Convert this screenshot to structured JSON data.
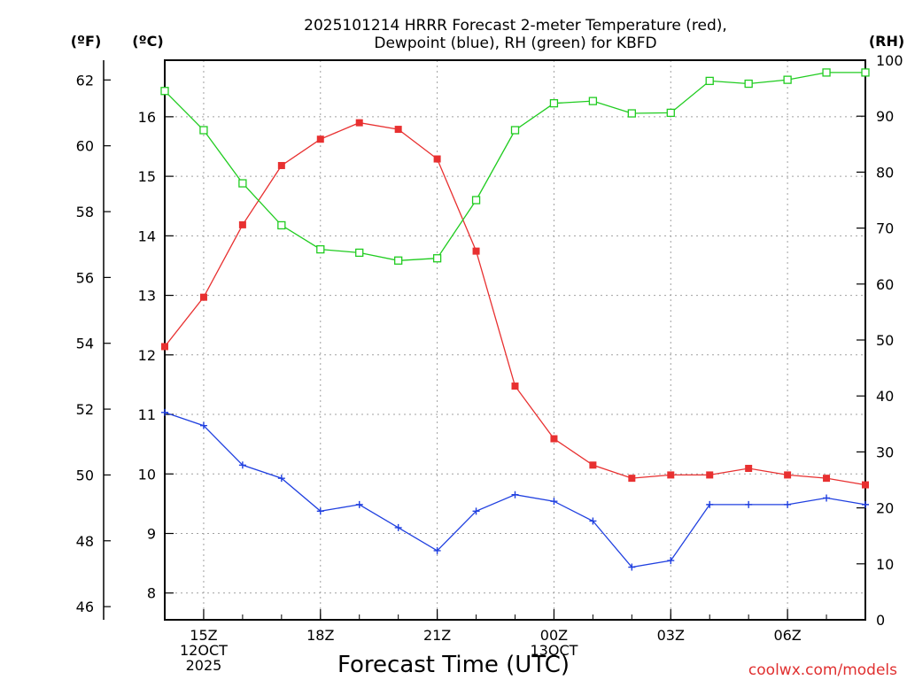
{
  "chart_data": {
    "type": "line",
    "title_line1": "2025101214 HRRR Forecast 2-meter Temperature (red),",
    "title_line2": "Dewpoint (blue), RH (green) for KBFD",
    "xlabel": "Forecast Time (UTC)",
    "credit": "coolwx.com/models",
    "left_axis_f": {
      "label": "(ºF)",
      "min": 45.6,
      "max": 62.6,
      "ticks": [
        "46",
        "48",
        "50",
        "52",
        "54",
        "56",
        "58",
        "60",
        "62"
      ]
    },
    "left_axis_c": {
      "label": "(ºC)",
      "min": 7.55,
      "max": 16.95,
      "ticks": [
        "8",
        "9",
        "10",
        "11",
        "12",
        "13",
        "14",
        "15",
        "16"
      ]
    },
    "right_axis": {
      "label": "(RH)",
      "min": 0,
      "max": 100,
      "ticks": [
        "0",
        "10",
        "20",
        "30",
        "40",
        "50",
        "60",
        "70",
        "80",
        "90",
        "100"
      ]
    },
    "x_hours_start": 14,
    "x_hours_end": 32,
    "x_ticks": [
      {
        "hour": 15,
        "lines": [
          "15Z",
          "12OCT",
          "2025"
        ]
      },
      {
        "hour": 18,
        "lines": [
          "18Z"
        ]
      },
      {
        "hour": 21,
        "lines": [
          "21Z"
        ]
      },
      {
        "hour": 24,
        "lines": [
          "00Z",
          "13OCT"
        ]
      },
      {
        "hour": 27,
        "lines": [
          "03Z"
        ]
      },
      {
        "hour": 30,
        "lines": [
          "06Z"
        ]
      }
    ],
    "x": [
      14,
      15,
      16,
      17,
      18,
      19,
      20,
      21,
      22,
      23,
      24,
      25,
      26,
      27,
      28,
      29,
      30,
      31,
      32
    ],
    "series": [
      {
        "name": "Temperature",
        "axis": "F",
        "color": "#e83030",
        "marker": "filled-square",
        "values": [
          53.9,
          55.4,
          57.6,
          59.4,
          60.2,
          60.7,
          60.5,
          59.6,
          56.8,
          52.7,
          51.1,
          50.3,
          49.9,
          50.0,
          50.0,
          50.2,
          50.0,
          49.9,
          49.7
        ]
      },
      {
        "name": "Dewpoint",
        "axis": "F",
        "color": "#2040e0",
        "marker": "plus",
        "values": [
          51.9,
          51.5,
          50.3,
          49.9,
          48.9,
          49.1,
          48.4,
          47.7,
          48.9,
          49.4,
          49.2,
          48.6,
          47.2,
          47.4,
          49.1,
          49.1,
          49.1,
          49.3,
          49.1
        ]
      },
      {
        "name": "RH",
        "axis": "RH",
        "color": "#20cc20",
        "marker": "open-square",
        "values": [
          94.5,
          87.5,
          78.0,
          70.5,
          66.2,
          65.6,
          64.2,
          64.6,
          75.0,
          87.5,
          92.3,
          92.7,
          90.5,
          90.6,
          96.3,
          95.8,
          96.5,
          97.8,
          97.8
        ]
      }
    ]
  }
}
